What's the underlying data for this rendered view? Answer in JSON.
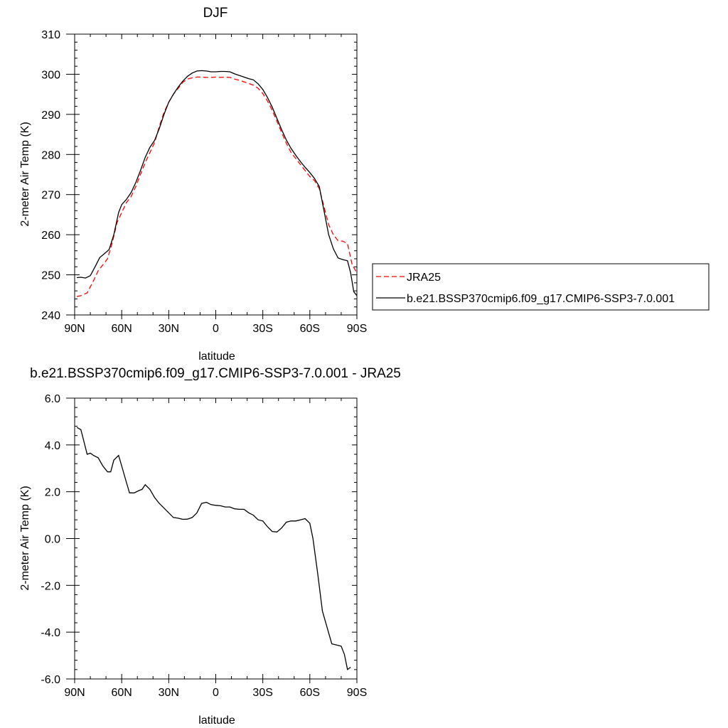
{
  "chart_data": [
    {
      "type": "line",
      "title": "DJF",
      "xlabel": "latitude",
      "ylabel": "2-meter Air Temp (K)",
      "xticks": [
        {
          "value": 90,
          "label": "90N"
        },
        {
          "value": 60,
          "label": "60N"
        },
        {
          "value": 30,
          "label": "30N"
        },
        {
          "value": 0,
          "label": "0"
        },
        {
          "value": -30,
          "label": "30S"
        },
        {
          "value": -60,
          "label": "60S"
        },
        {
          "value": -90,
          "label": "90S"
        }
      ],
      "xlim": [
        90,
        -90
      ],
      "ylim": [
        240,
        310
      ],
      "yticks": [
        240,
        250,
        260,
        270,
        280,
        290,
        300,
        310
      ],
      "ytick_labels": [
        "240",
        "250",
        "260",
        "270",
        "280",
        "290",
        "300",
        "310"
      ],
      "legend": {
        "position": "right",
        "entries": [
          "JRA25",
          "b.e21.BSSP370cmip6.f09_g17.CMIP6-SSP3-7.0.001"
        ]
      },
      "series": [
        {
          "name": "JRA25",
          "color": "#ff0000",
          "dash": "dashed",
          "points": [
            [
              88.6,
              244.6
            ],
            [
              86,
              244.8
            ],
            [
              82,
              245.5
            ],
            [
              78,
              248.5
            ],
            [
              75,
              251
            ],
            [
              72,
              252.5
            ],
            [
              69,
              254
            ],
            [
              66,
              258
            ],
            [
              63,
              263
            ],
            [
              60,
              265.5
            ],
            [
              57,
              268
            ],
            [
              54,
              269.5
            ],
            [
              51,
              272
            ],
            [
              48,
              275
            ],
            [
              45,
              278
            ],
            [
              42,
              280.5
            ],
            [
              39,
              283
            ],
            [
              36,
              287
            ],
            [
              33,
              290.5
            ],
            [
              30,
              293
            ],
            [
              27,
              295
            ],
            [
              24,
              296.5
            ],
            [
              21,
              298
            ],
            [
              18,
              298.8
            ],
            [
              15,
              299.1
            ],
            [
              12,
              299.3
            ],
            [
              9,
              299.3
            ],
            [
              6,
              299.2
            ],
            [
              3,
              299.2
            ],
            [
              0,
              299.3
            ],
            [
              -3,
              299.2
            ],
            [
              -6,
              299.3
            ],
            [
              -9,
              299.2
            ],
            [
              -12,
              298.8
            ],
            [
              -15,
              298.5
            ],
            [
              -18,
              298.1
            ],
            [
              -21,
              297.7
            ],
            [
              -24,
              297.3
            ],
            [
              -27,
              296.5
            ],
            [
              -30,
              295.2
            ],
            [
              -33,
              293.3
            ],
            [
              -36,
              291
            ],
            [
              -39,
              288.3
            ],
            [
              -42,
              285.5
            ],
            [
              -45,
              282.8
            ],
            [
              -48,
              280.5
            ],
            [
              -51,
              279
            ],
            [
              -54,
              277.5
            ],
            [
              -57,
              276
            ],
            [
              -60,
              274.5
            ],
            [
              -63,
              273.5
            ],
            [
              -66,
              271.5
            ],
            [
              -69,
              267
            ],
            [
              -72,
              262.5
            ],
            [
              -75,
              260
            ],
            [
              -78,
              258.5
            ],
            [
              -81,
              258.4
            ],
            [
              -84,
              257.8
            ],
            [
              -87,
              252.5
            ],
            [
              -90,
              250.5
            ]
          ]
        },
        {
          "name": "b.e21.BSSP370cmip6.f09_g17.CMIP6-SSP3-7.0.001",
          "color": "#000000",
          "dash": "solid",
          "points": [
            [
              88.6,
              249.3
            ],
            [
              86,
              249.4
            ],
            [
              83,
              249.2
            ],
            [
              80,
              249.8
            ],
            [
              77,
              252
            ],
            [
              74,
              254.3
            ],
            [
              71,
              255.3
            ],
            [
              68,
              256.3
            ],
            [
              65,
              260
            ],
            [
              62,
              265.5
            ],
            [
              60,
              267.5
            ],
            [
              57,
              268.8
            ],
            [
              54,
              270.5
            ],
            [
              51,
              273
            ],
            [
              48,
              276
            ],
            [
              45,
              279.3
            ],
            [
              42,
              281.8
            ],
            [
              39,
              283.5
            ],
            [
              36,
              286.5
            ],
            [
              33,
              290
            ],
            [
              30,
              293
            ],
            [
              27,
              295
            ],
            [
              24,
              296.8
            ],
            [
              21,
              298.3
            ],
            [
              18,
              299.5
            ],
            [
              15,
              300.3
            ],
            [
              12,
              300.8
            ],
            [
              9,
              300.9
            ],
            [
              6,
              300.8
            ],
            [
              3,
              300.6
            ],
            [
              0,
              300.6
            ],
            [
              -3,
              300.7
            ],
            [
              -6,
              300.7
            ],
            [
              -9,
              300.6
            ],
            [
              -12,
              300.1
            ],
            [
              -15,
              299.7
            ],
            [
              -18,
              299.3
            ],
            [
              -21,
              298.9
            ],
            [
              -24,
              298.6
            ],
            [
              -27,
              297.6
            ],
            [
              -30,
              296.2
            ],
            [
              -33,
              294.2
            ],
            [
              -36,
              291.8
            ],
            [
              -39,
              289
            ],
            [
              -42,
              286.2
            ],
            [
              -45,
              283.6
            ],
            [
              -48,
              281.5
            ],
            [
              -51,
              279.8
            ],
            [
              -54,
              278.2
            ],
            [
              -57,
              276.8
            ],
            [
              -60,
              275.5
            ],
            [
              -63,
              274
            ],
            [
              -66,
              272
            ],
            [
              -69,
              266
            ],
            [
              -72,
              260
            ],
            [
              -75,
              256.5
            ],
            [
              -78,
              254.2
            ],
            [
              -81,
              253.8
            ],
            [
              -84,
              253.5
            ],
            [
              -86,
              250.5
            ],
            [
              -88,
              245.8
            ],
            [
              -90,
              244.8
            ]
          ]
        }
      ]
    },
    {
      "type": "line",
      "title": "b.e21.BSSP370cmip6.f09_g17.CMIP6-SSP3-7.0.001 - JRA25",
      "xlabel": "latitude",
      "ylabel": "2-meter Air Temp (K)",
      "xticks": [
        {
          "value": 90,
          "label": "90N"
        },
        {
          "value": 60,
          "label": "60N"
        },
        {
          "value": 30,
          "label": "30N"
        },
        {
          "value": 0,
          "label": "0"
        },
        {
          "value": -30,
          "label": "30S"
        },
        {
          "value": -60,
          "label": "60S"
        },
        {
          "value": -90,
          "label": "90S"
        }
      ],
      "xlim": [
        90,
        -90
      ],
      "ylim": [
        -6,
        6
      ],
      "yticks": [
        -6,
        -4,
        -2,
        0,
        2,
        4,
        6
      ],
      "ytick_labels": [
        "-6.0",
        "-4.0",
        "-2.0",
        "0.0",
        "2.0",
        "4.0",
        "6.0"
      ],
      "series": [
        {
          "color": "#000000",
          "dash": "solid",
          "points": [
            [
              88.6,
              4.75
            ],
            [
              86,
              4.65
            ],
            [
              82,
              3.6
            ],
            [
              80,
              3.65
            ],
            [
              78,
              3.55
            ],
            [
              75,
              3.45
            ],
            [
              72,
              3.1
            ],
            [
              69,
              2.85
            ],
            [
              67,
              2.85
            ],
            [
              65,
              3.35
            ],
            [
              62,
              3.55
            ],
            [
              60,
              3.1
            ],
            [
              57,
              2.4
            ],
            [
              55,
              1.95
            ],
            [
              52,
              1.95
            ],
            [
              49,
              2.05
            ],
            [
              47,
              2.1
            ],
            [
              45,
              2.3
            ],
            [
              42,
              2.1
            ],
            [
              39,
              1.75
            ],
            [
              36,
              1.5
            ],
            [
              33,
              1.3
            ],
            [
              30,
              1.1
            ],
            [
              27,
              0.9
            ],
            [
              24,
              0.87
            ],
            [
              21,
              0.82
            ],
            [
              18,
              0.83
            ],
            [
              15,
              0.9
            ],
            [
              12,
              1.1
            ],
            [
              9,
              1.5
            ],
            [
              6,
              1.55
            ],
            [
              3,
              1.45
            ],
            [
              0,
              1.42
            ],
            [
              -3,
              1.4
            ],
            [
              -6,
              1.35
            ],
            [
              -9,
              1.35
            ],
            [
              -12,
              1.27
            ],
            [
              -15,
              1.25
            ],
            [
              -18,
              1.25
            ],
            [
              -21,
              1.1
            ],
            [
              -24,
              1.0
            ],
            [
              -27,
              0.8
            ],
            [
              -30,
              0.75
            ],
            [
              -33,
              0.5
            ],
            [
              -36,
              0.3
            ],
            [
              -39,
              0.28
            ],
            [
              -42,
              0.45
            ],
            [
              -45,
              0.7
            ],
            [
              -48,
              0.75
            ],
            [
              -51,
              0.75
            ],
            [
              -54,
              0.8
            ],
            [
              -57,
              0.85
            ],
            [
              -60,
              0.65
            ],
            [
              -62,
              0.0
            ],
            [
              -65,
              -1.5
            ],
            [
              -68,
              -3.1
            ],
            [
              -71,
              -3.8
            ],
            [
              -74,
              -4.5
            ],
            [
              -77,
              -4.55
            ],
            [
              -80,
              -4.6
            ],
            [
              -82,
              -4.95
            ],
            [
              -84,
              -5.6
            ],
            [
              -86,
              -5.5
            ]
          ]
        }
      ]
    }
  ]
}
